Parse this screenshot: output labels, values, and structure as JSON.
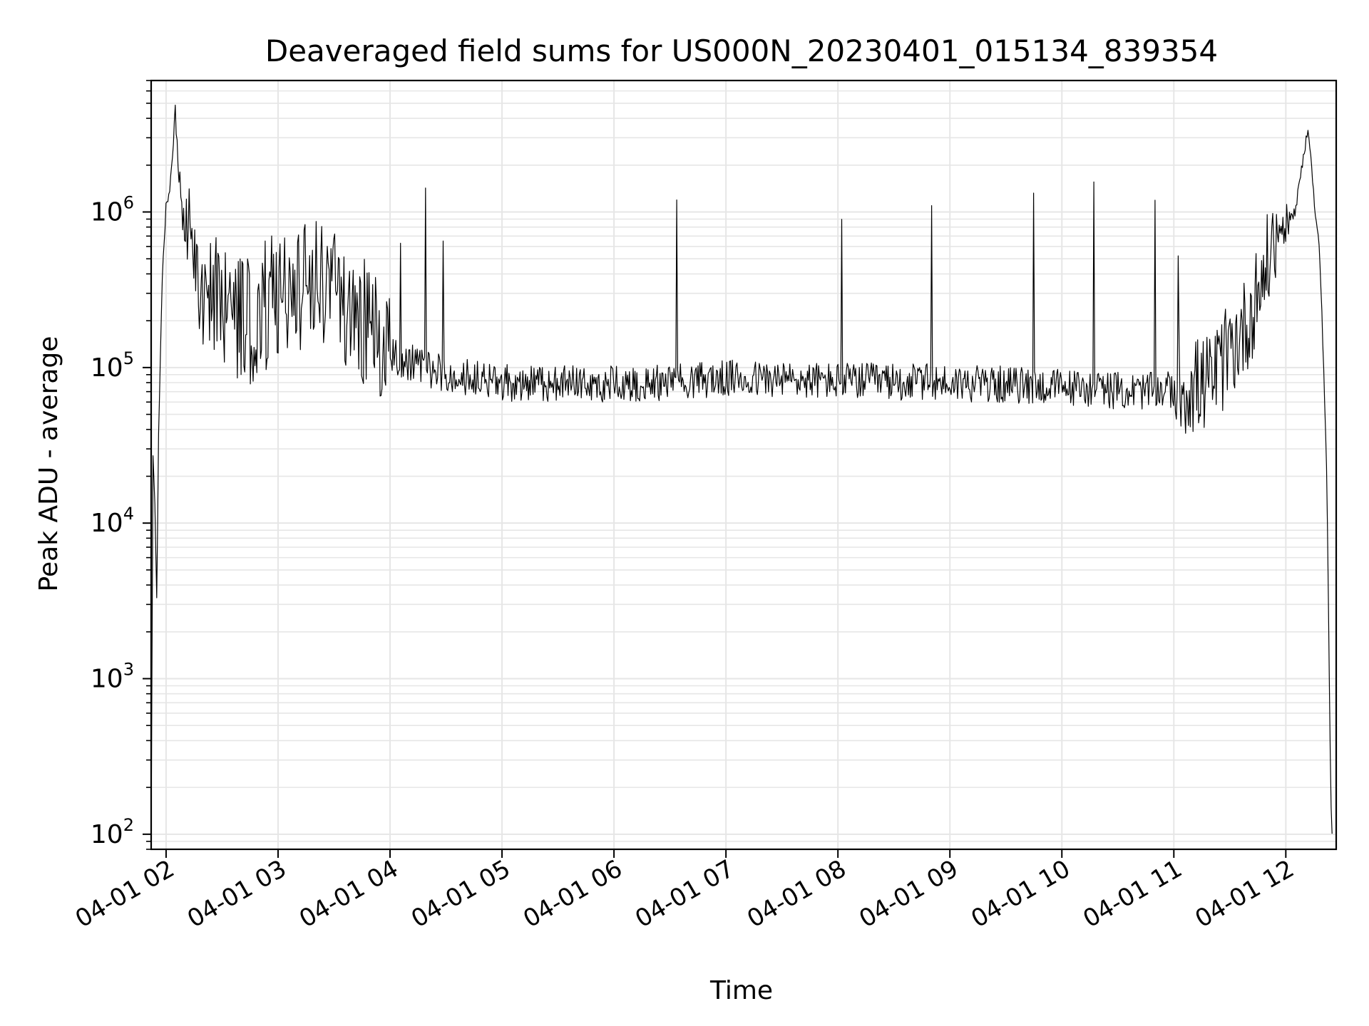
{
  "chart_data": {
    "type": "line",
    "title": "Deaveraged field sums for US000N_20230401_015134_839354",
    "xlabel": "Time",
    "ylabel": "Peak ADU - average",
    "y_scale": "log",
    "grid": true,
    "legend": "none",
    "line_color": "#000000",
    "grid_color": "#e6e6e6",
    "xlim": [
      "2023-04-01 01:52",
      "2023-04-01 12:27"
    ],
    "ylim": [
      80,
      7000000
    ],
    "x_ticks": [
      {
        "t": "2023-04-01 02:00",
        "label": "04-01 02"
      },
      {
        "t": "2023-04-01 03:00",
        "label": "04-01 03"
      },
      {
        "t": "2023-04-01 04:00",
        "label": "04-01 04"
      },
      {
        "t": "2023-04-01 05:00",
        "label": "04-01 05"
      },
      {
        "t": "2023-04-01 06:00",
        "label": "04-01 06"
      },
      {
        "t": "2023-04-01 07:00",
        "label": "04-01 07"
      },
      {
        "t": "2023-04-01 08:00",
        "label": "04-01 08"
      },
      {
        "t": "2023-04-01 09:00",
        "label": "04-01 09"
      },
      {
        "t": "2023-04-01 10:00",
        "label": "04-01 10"
      },
      {
        "t": "2023-04-01 11:00",
        "label": "04-01 11"
      },
      {
        "t": "2023-04-01 12:00",
        "label": "04-01 12"
      }
    ],
    "y_ticks": [
      {
        "value": 100,
        "base": "10",
        "exp": "2"
      },
      {
        "value": 1000,
        "base": "10",
        "exp": "3"
      },
      {
        "value": 10000,
        "base": "10",
        "exp": "4"
      },
      {
        "value": 100000,
        "base": "10",
        "exp": "5"
      },
      {
        "value": 1000000,
        "base": "10",
        "exp": "6"
      }
    ],
    "series": [
      {
        "x": [
          "2023-04-01 01:52",
          "2023-04-01 01:53",
          "2023-04-01 01:54",
          "2023-04-01 01:55",
          "2023-04-01 01:56",
          "2023-04-01 01:58",
          "2023-04-01 02:00",
          "2023-04-01 02:02",
          "2023-04-01 02:05",
          "2023-04-01 02:08",
          "2023-04-01 02:10",
          "2023-04-01 02:15",
          "2023-04-01 02:20",
          "2023-04-01 02:30",
          "2023-04-01 02:45",
          "2023-04-01 03:00",
          "2023-04-01 03:20",
          "2023-04-01 03:40",
          "2023-04-01 04:00",
          "2023-04-01 04:30",
          "2023-04-01 05:00",
          "2023-04-01 06:00",
          "2023-04-01 07:00",
          "2023-04-01 08:00",
          "2023-04-01 09:00",
          "2023-04-01 10:00",
          "2023-04-01 10:40",
          "2023-04-01 11:00",
          "2023-04-01 11:20",
          "2023-04-01 11:40",
          "2023-04-01 11:55",
          "2023-04-01 12:05",
          "2023-04-01 12:12",
          "2023-04-01 12:16",
          "2023-04-01 12:18",
          "2023-04-01 12:20",
          "2023-04-01 12:22",
          "2023-04-01 12:24",
          "2023-04-01 12:25"
        ],
        "y": [
          100,
          28000,
          14000,
          3000,
          40000,
          400000,
          1100000,
          1400000,
          4200000,
          1100000,
          700000,
          500000,
          300000,
          250000,
          200000,
          300000,
          350000,
          250000,
          120000,
          90000,
          80000,
          78000,
          85000,
          82000,
          80000,
          75000,
          70000,
          72000,
          80000,
          200000,
          700000,
          1000000,
          3600000,
          900000,
          600000,
          130000,
          20000,
          200,
          80
        ]
      }
    ]
  }
}
